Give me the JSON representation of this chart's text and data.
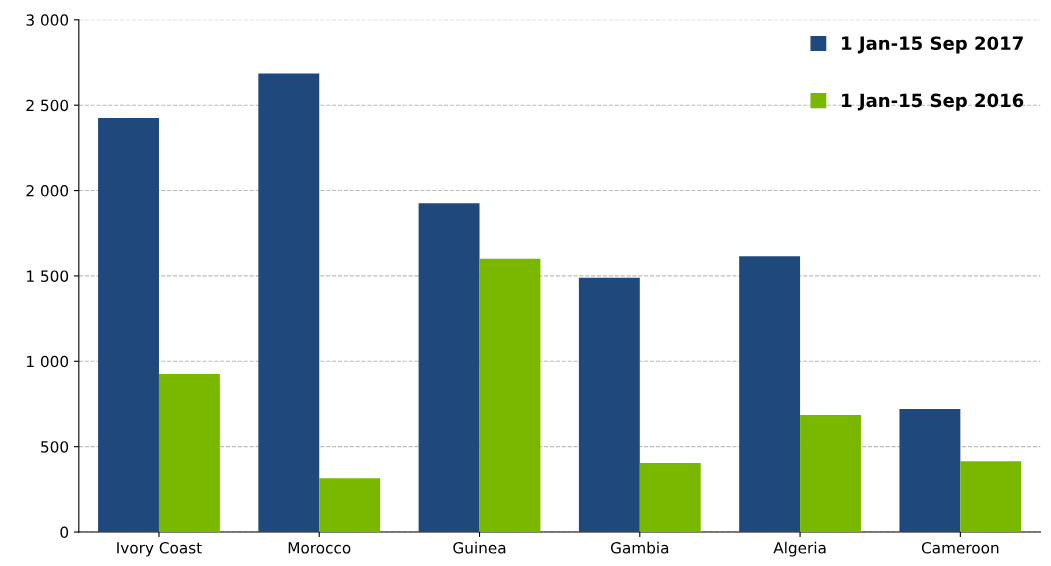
{
  "chart_data": {
    "type": "bar",
    "categories": [
      "Ivory Coast",
      "Morocco",
      "Guinea",
      "Gambia",
      "Algeria",
      "Cameroon"
    ],
    "series": [
      {
        "name": "1 Jan-15 Sep 2017",
        "color": "#1f497d",
        "values": [
          2425,
          2685,
          1925,
          1490,
          1615,
          720
        ]
      },
      {
        "name": "1 Jan-15 Sep 2016",
        "color": "#7ab800",
        "values": [
          925,
          315,
          1600,
          405,
          685,
          415
        ]
      }
    ],
    "ylim": [
      0,
      3000
    ],
    "yticks": [
      0,
      500,
      {
        "value": 1000,
        "label": "1 000"
      },
      {
        "value": 1500,
        "label": "1 500"
      },
      {
        "value": 2000,
        "label": "2 000"
      },
      {
        "value": 2500,
        "label": "2 500"
      },
      {
        "value": 3000,
        "label": "3 000"
      }
    ],
    "grid": "y",
    "legend": "top right"
  }
}
